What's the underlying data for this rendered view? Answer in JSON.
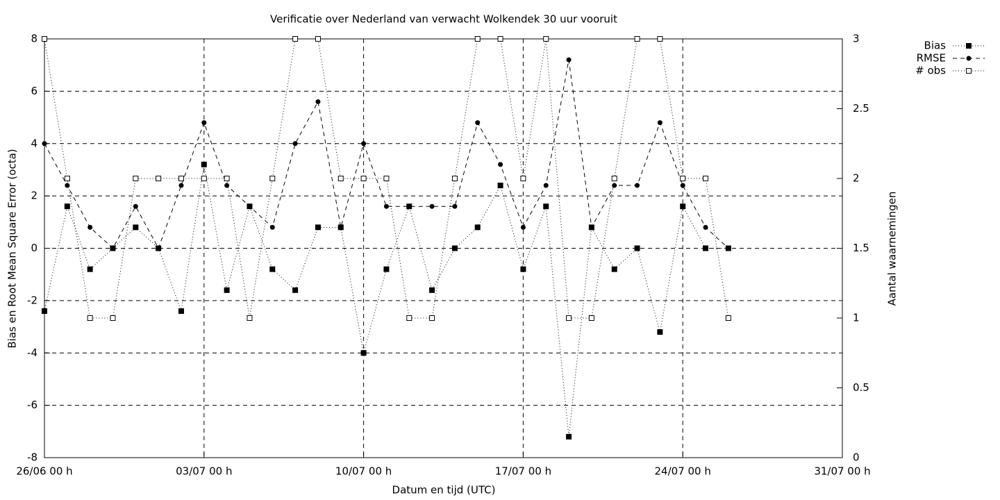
{
  "chart_data": {
    "type": "line",
    "title": "Verificatie over Nederland van verwacht Wolkendek 30 uur vooruit",
    "x_label": "Datum en tijd (UTC)",
    "y_label": "Bias en Root Mean Square Error (octa)",
    "y2_label": "Aantal waarnemingen",
    "x": [
      0,
      1,
      2,
      3,
      4,
      5,
      6,
      7,
      8,
      9,
      10,
      11,
      12,
      13,
      14,
      15,
      16,
      17,
      18,
      19,
      20,
      21,
      22,
      23,
      24,
      25,
      26,
      27,
      28,
      29,
      30
    ],
    "xlim": [
      0,
      35
    ],
    "xticks": [
      {
        "value": 0,
        "label": "26/06 00 h"
      },
      {
        "value": 7,
        "label": "03/07 00 h"
      },
      {
        "value": 14,
        "label": "10/07 00 h"
      },
      {
        "value": 21,
        "label": "17/07 00 h"
      },
      {
        "value": 28,
        "label": "24/07 00 h"
      },
      {
        "value": 35,
        "label": "31/07 00 h"
      }
    ],
    "ylim": [
      -8,
      8
    ],
    "yticks": [
      -8,
      -6,
      -4,
      -2,
      0,
      2,
      4,
      6,
      8
    ],
    "y2lim": [
      0,
      3
    ],
    "y2ticks": [
      0,
      0.5,
      1,
      1.5,
      2,
      2.5,
      3
    ],
    "grid": true,
    "legend": "outside-top-right",
    "series": [
      {
        "name": "Bias",
        "color": "#000000",
        "marker": "filled-square",
        "dash": "dotted",
        "values": [
          -2.4,
          1.6,
          -0.8,
          0,
          0.8,
          0,
          -2.4,
          3.2,
          -1.6,
          1.6,
          -0.8,
          -1.6,
          0.8,
          0.8,
          -4,
          -0.8,
          1.6,
          -1.6,
          0,
          0.8,
          2.4,
          -0.8,
          1.6,
          -7.2,
          0.8,
          -0.8,
          0,
          -3.2,
          1.6,
          0,
          0
        ]
      },
      {
        "name": "RMSE",
        "color": "#000000",
        "marker": "circle",
        "dash": "dashed",
        "values": [
          4,
          2.4,
          0.8,
          0,
          1.6,
          0,
          2.4,
          4.8,
          2.4,
          1.6,
          0.8,
          4,
          5.6,
          0.8,
          4,
          1.6,
          1.6,
          1.6,
          1.6,
          4.8,
          3.2,
          0.8,
          2.4,
          7.2,
          0.8,
          2.4,
          2.4,
          4.8,
          2.4,
          0.8,
          0
        ]
      },
      {
        "name": "# obs",
        "color": "#000000",
        "marker": "open-square",
        "dash": "dotted",
        "axis": "y2",
        "values": [
          3,
          2,
          1,
          1,
          2,
          2,
          2,
          2,
          2,
          1,
          2,
          3,
          3,
          2,
          2,
          2,
          1,
          1,
          2,
          3,
          3,
          2,
          3,
          1,
          1,
          2,
          3,
          3,
          2,
          2,
          1
        ]
      }
    ]
  }
}
